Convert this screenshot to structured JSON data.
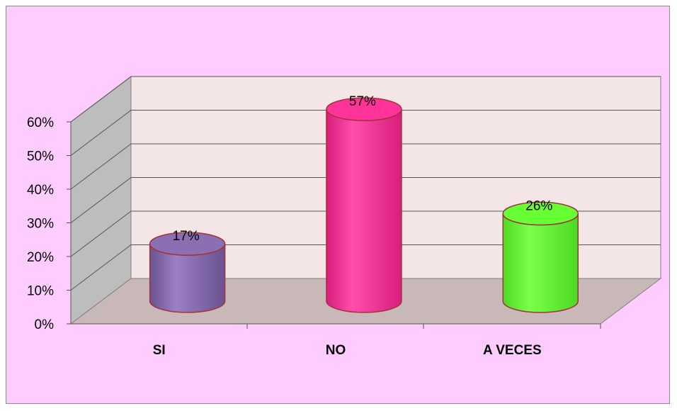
{
  "chart_data": {
    "type": "bar",
    "categories": [
      "SI",
      "NO",
      "A VECES"
    ],
    "values": [
      17,
      57,
      26
    ],
    "data_labels": [
      "17%",
      "57%",
      "26%"
    ],
    "yticks": [
      "0%",
      "10%",
      "20%",
      "30%",
      "40%",
      "50%",
      "60%"
    ],
    "ylim": [
      0,
      60
    ],
    "grid": true,
    "colors": {
      "SI": "#8a6fb2",
      "NO": "#ff3399",
      "A VECES": "#66ff33",
      "outline": "#a3333d",
      "wall": "#f4e6e6",
      "floor": "#c8b8b8",
      "side_wall": "#bdbdbd",
      "frame_bg": "#ffccff"
    }
  }
}
